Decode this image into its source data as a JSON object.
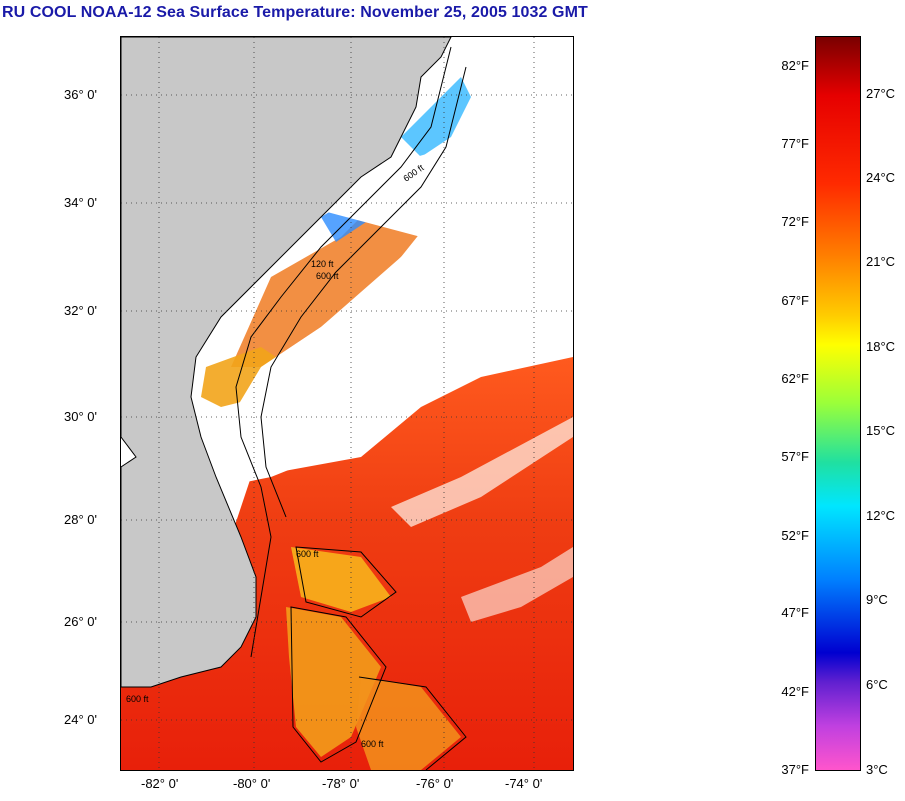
{
  "title": "RU COOL  NOAA-12  Sea Surface Temperature:  November 25, 2005 1032 GMT",
  "map": {
    "lat_labels": [
      "36° 0'",
      "34° 0'",
      "32° 0'",
      "30° 0'",
      "28° 0'",
      "26° 0'",
      "24° 0'"
    ],
    "lon_labels": [
      "-82° 0'",
      "-80° 0'",
      "-78° 0'",
      "-76° 0'",
      "-74° 0'"
    ],
    "contour_labels": [
      "600 ft",
      "120 ft",
      "600 ft",
      "600 ft",
      "600 ft",
      "600 ft"
    ],
    "colors": {
      "land": "#c8c8c8",
      "cloud": "#ffffff",
      "warm_water": "#ee2a0a",
      "cool_water": "#1ea0ff"
    }
  },
  "colorbar": {
    "fahrenheit": [
      "82°F",
      "77°F",
      "72°F",
      "67°F",
      "62°F",
      "57°F",
      "52°F",
      "47°F",
      "42°F",
      "37°F"
    ],
    "celsius": [
      "27°C",
      "24°C",
      "21°C",
      "18°C",
      "15°C",
      "12°C",
      "9°C",
      "6°C",
      "3°C"
    ]
  }
}
